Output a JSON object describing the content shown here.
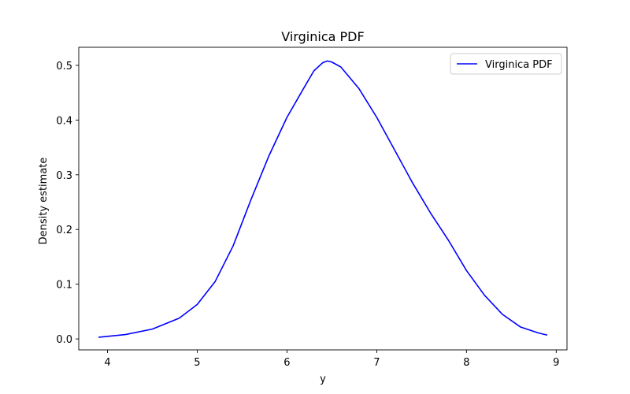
{
  "chart_data": {
    "type": "line",
    "title": "Virginica PDF",
    "xlabel": "y",
    "ylabel": "Density estimate",
    "xlim": [
      3.68,
      9.12
    ],
    "ylim": [
      -0.02,
      0.533
    ],
    "xticks": [
      4,
      5,
      6,
      7,
      8,
      9
    ],
    "yticks": [
      0.0,
      0.1,
      0.2,
      0.3,
      0.4,
      0.5
    ],
    "xtick_labels": [
      "4",
      "5",
      "6",
      "7",
      "8",
      "9"
    ],
    "ytick_labels": [
      "0.0",
      "0.1",
      "0.2",
      "0.3",
      "0.4",
      "0.5"
    ],
    "grid": false,
    "legend": {
      "position": "top-right",
      "entries": [
        "Virginica PDF"
      ]
    },
    "series": [
      {
        "name": "Virginica PDF",
        "color": "#0000ff",
        "x": [
          3.9,
          4.2,
          4.5,
          4.8,
          5.0,
          5.2,
          5.4,
          5.6,
          5.8,
          6.0,
          6.2,
          6.3,
          6.4,
          6.45,
          6.5,
          6.6,
          6.8,
          7.0,
          7.2,
          7.4,
          7.6,
          7.8,
          8.0,
          8.2,
          8.4,
          8.6,
          8.8,
          8.9
        ],
        "y": [
          0.003,
          0.008,
          0.018,
          0.038,
          0.063,
          0.105,
          0.17,
          0.255,
          0.335,
          0.405,
          0.462,
          0.49,
          0.505,
          0.508,
          0.506,
          0.497,
          0.458,
          0.405,
          0.345,
          0.285,
          0.23,
          0.18,
          0.125,
          0.08,
          0.045,
          0.022,
          0.011,
          0.007
        ]
      }
    ]
  }
}
